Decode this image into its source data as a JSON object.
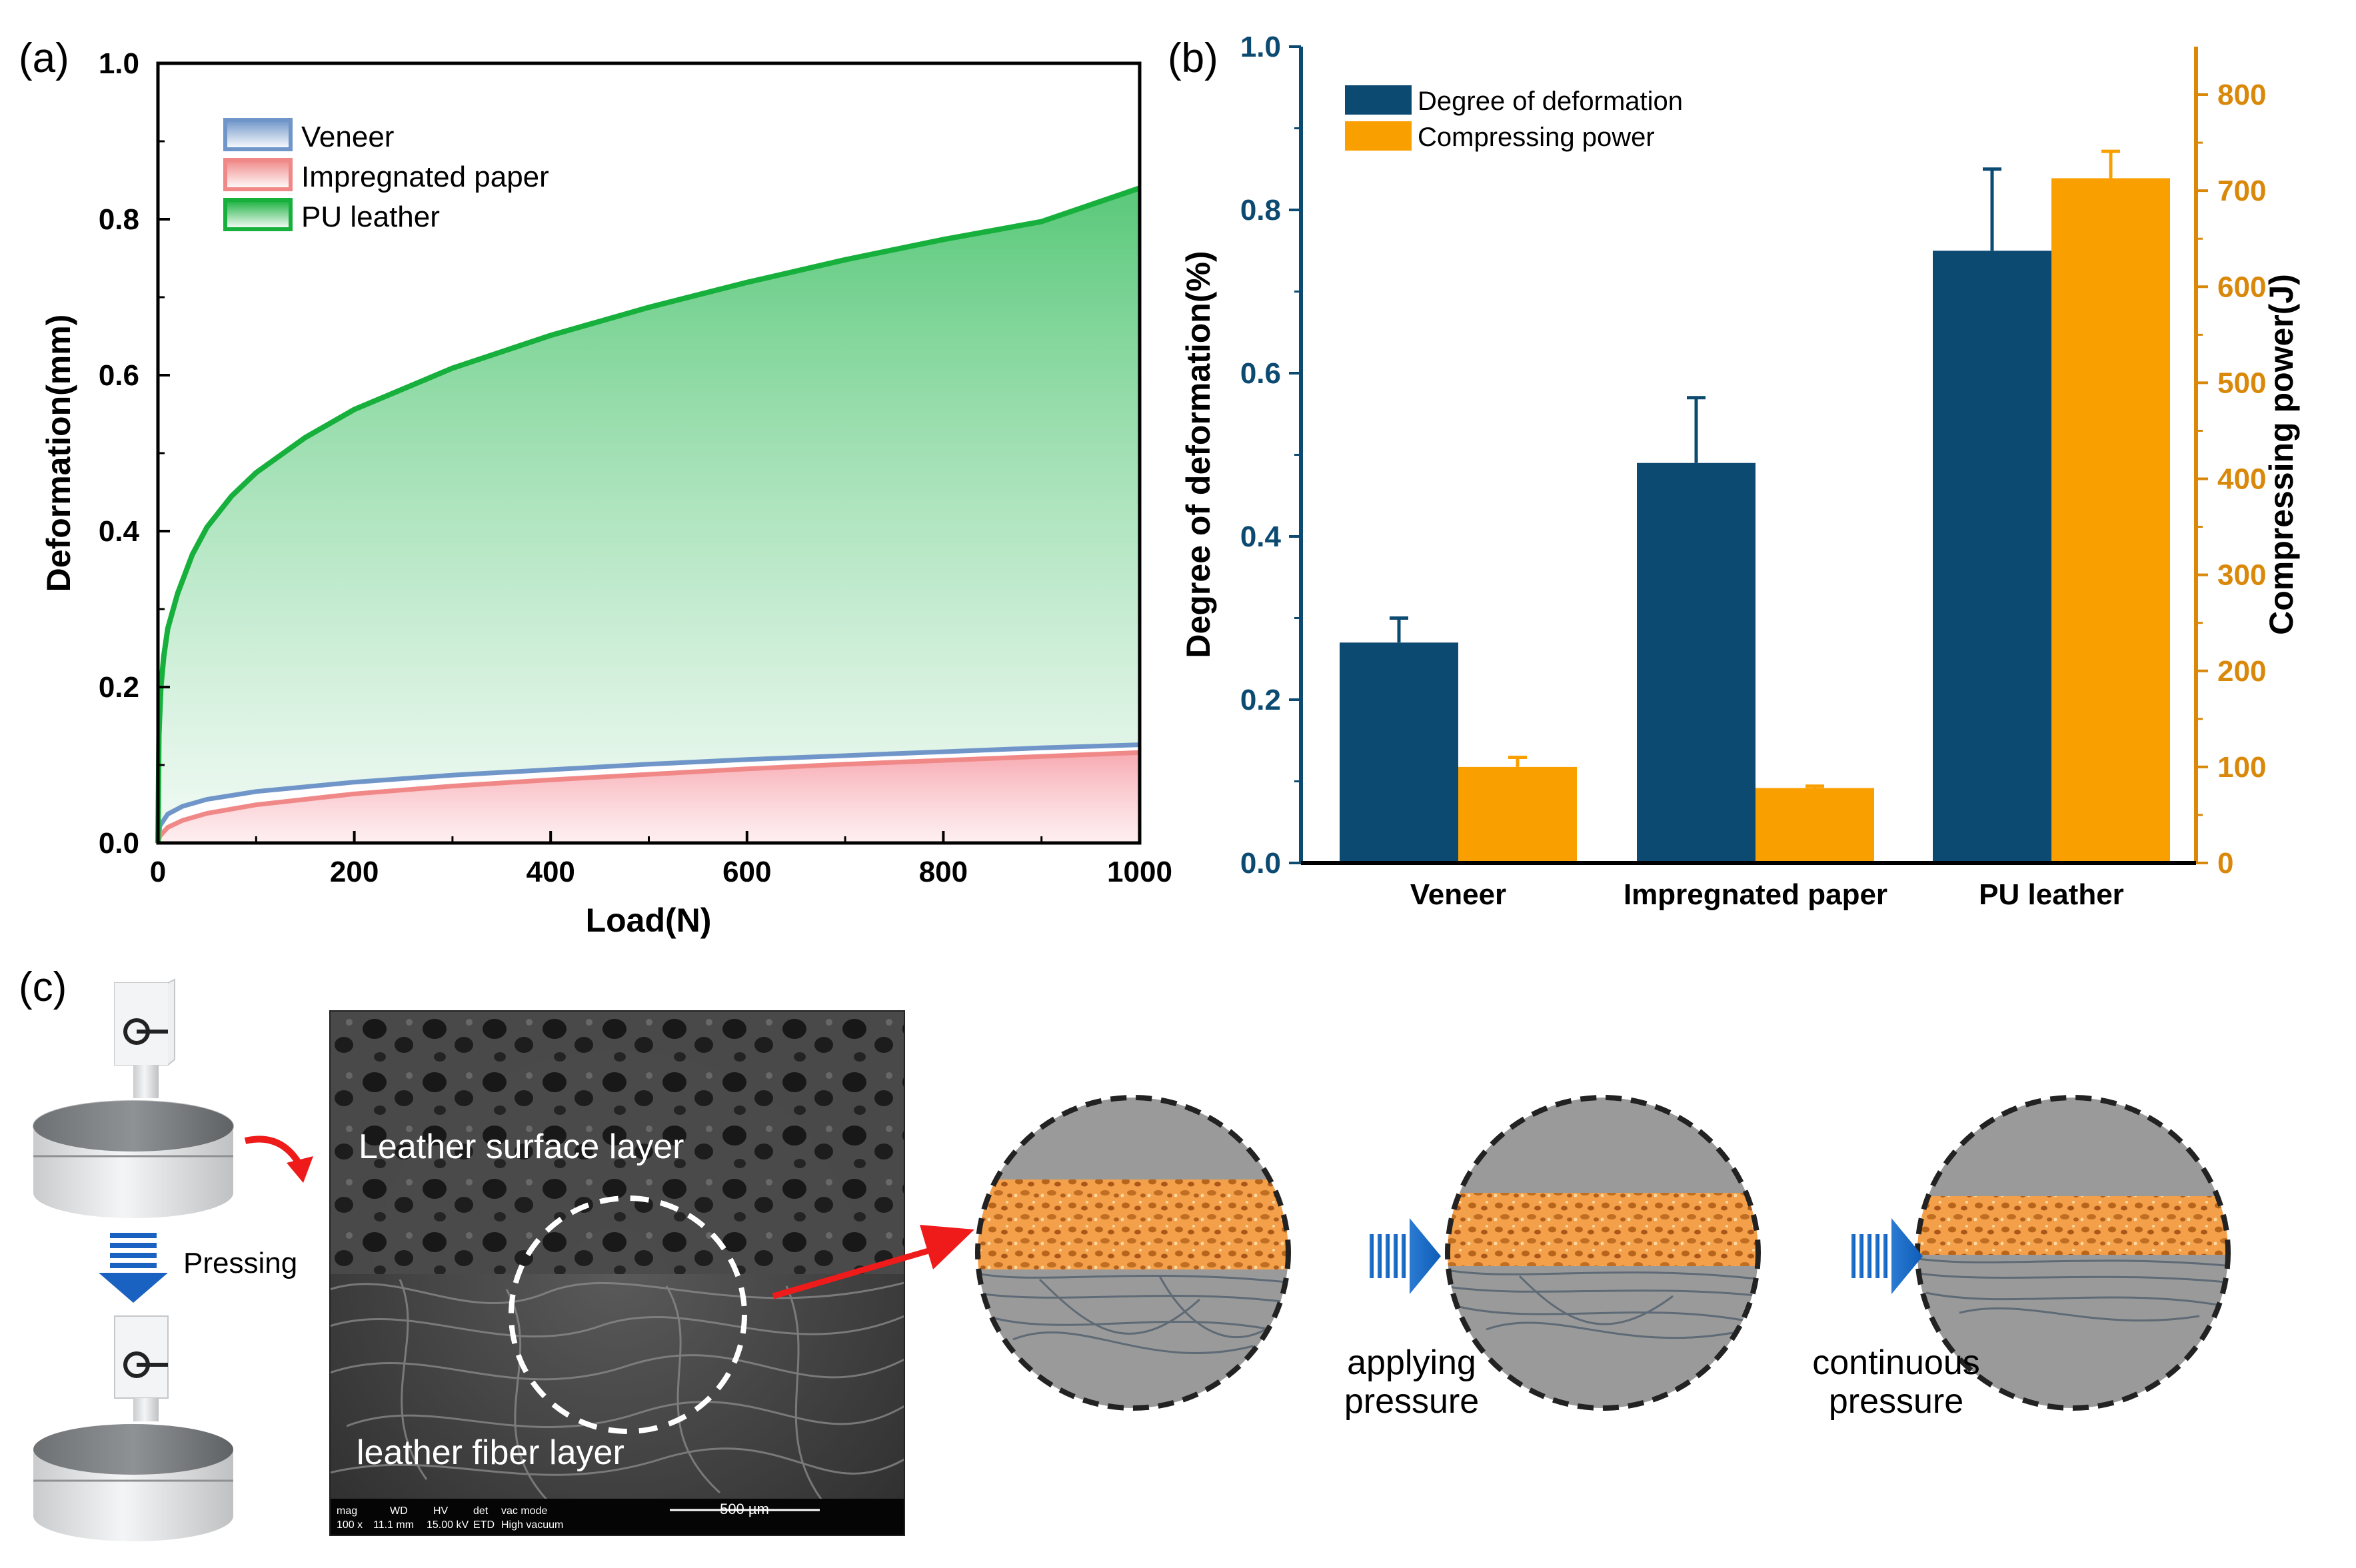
{
  "panel_labels": {
    "a": "(a)",
    "b": "(b)",
    "c": "(c)"
  },
  "colors": {
    "veneer": "#6f95c9",
    "impregnated": "#f08888",
    "pu": "#17b03c",
    "navy": "#0c4a72",
    "orange": "#f9a000",
    "orange_axis": "#d9880a",
    "foam": "#f4a04a"
  },
  "chart_data": [
    {
      "id": "a",
      "type": "area",
      "title": "",
      "xlabel": "Load(N)",
      "ylabel": "Deformation(mm)",
      "xlim": [
        0,
        1000
      ],
      "ylim": [
        0,
        1.0
      ],
      "xticks": [
        0,
        200,
        400,
        600,
        800,
        1000
      ],
      "yticks": [
        "0.0",
        "0.2",
        "0.4",
        "0.6",
        "0.8",
        "1.0"
      ],
      "legend_position": "top-left",
      "series": [
        {
          "name": "Veneer",
          "color": "#6f95c9",
          "x": [
            0,
            2,
            10,
            25,
            50,
            100,
            200,
            300,
            400,
            500,
            600,
            700,
            800,
            900,
            1000
          ],
          "y": [
            0.0,
            0.022,
            0.037,
            0.047,
            0.056,
            0.066,
            0.078,
            0.087,
            0.094,
            0.101,
            0.107,
            0.112,
            0.117,
            0.122,
            0.126
          ]
        },
        {
          "name": "Impregnated paper",
          "color": "#f08888",
          "x": [
            0,
            2,
            10,
            25,
            50,
            100,
            200,
            300,
            400,
            500,
            600,
            700,
            800,
            900,
            1000
          ],
          "y": [
            0.0,
            0.009,
            0.02,
            0.029,
            0.038,
            0.049,
            0.063,
            0.073,
            0.081,
            0.088,
            0.095,
            0.101,
            0.106,
            0.111,
            0.116
          ]
        },
        {
          "name": "PU leather",
          "color": "#17b03c",
          "x": [
            0,
            1,
            3,
            6,
            10,
            20,
            35,
            50,
            75,
            100,
            150,
            200,
            300,
            400,
            500,
            600,
            700,
            800,
            900,
            1000
          ],
          "y": [
            0.0,
            0.14,
            0.2,
            0.24,
            0.275,
            0.32,
            0.37,
            0.405,
            0.445,
            0.475,
            0.52,
            0.556,
            0.609,
            0.651,
            0.687,
            0.719,
            0.748,
            0.774,
            0.797,
            0.84
          ]
        }
      ]
    },
    {
      "id": "b",
      "type": "bar",
      "title": "",
      "xlabel": "",
      "ylabel": "Degree of deformation(%)",
      "ylabel_right": "Compressing power(J)",
      "categories": [
        "Veneer",
        "Impregnated paper",
        "PU leather"
      ],
      "ylim": [
        0,
        1.0
      ],
      "ylim_right": [
        0,
        850
      ],
      "yticks": [
        "0.0",
        "0.2",
        "0.4",
        "0.6",
        "0.8",
        "1.0"
      ],
      "yticks_right": [
        "0",
        "100",
        "200",
        "300",
        "400",
        "500",
        "600",
        "700",
        "800"
      ],
      "legend_position": "top-left",
      "series": [
        {
          "name": "Degree of deformation",
          "axis": "left",
          "color": "#0c4a72",
          "values": [
            0.27,
            0.49,
            0.75
          ],
          "errors": [
            0.03,
            0.08,
            0.1
          ]
        },
        {
          "name": "Compressing power",
          "axis": "right",
          "color": "#f9a000",
          "values": [
            100,
            78,
            713
          ],
          "errors": [
            10,
            2,
            28
          ]
        }
      ]
    }
  ],
  "panel_c": {
    "pressing_label": "Pressing",
    "sem": {
      "surface_layer_label": "Leather surface layer",
      "fiber_layer_label": "leather fiber layer",
      "scalebar_label": "500 µm",
      "info_headers": [
        "mag",
        "WD",
        "HV",
        "det",
        "vac mode"
      ],
      "info_values": [
        "100 x",
        "11.1 mm",
        "15.00 kV",
        "ETD",
        "High vacuum"
      ]
    },
    "steps": [
      {
        "line1": "applying",
        "line2": "pressure"
      },
      {
        "line1": "continuous",
        "line2": "pressure"
      }
    ]
  }
}
